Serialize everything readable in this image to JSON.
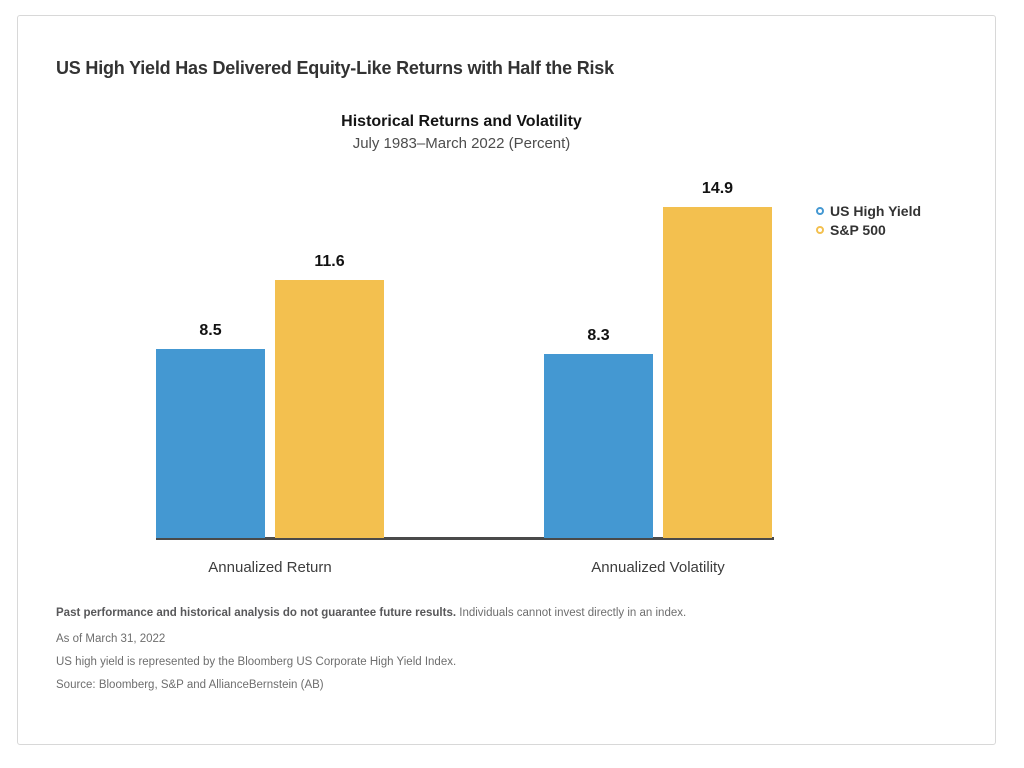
{
  "page_title": "US High Yield Has Delivered Equity-Like Returns with Half the Risk",
  "chart_data": {
    "type": "bar",
    "title": "Historical Returns and Volatility",
    "subtitle": "July 1983–March 2022 (Percent)",
    "categories": [
      "Annualized Return",
      "Annualized Volatility"
    ],
    "series": [
      {
        "name": "US High Yield",
        "color": "#4498D2",
        "values": [
          8.5,
          8.3
        ]
      },
      {
        "name": "S&P 500",
        "color": "#F3C04F",
        "values": [
          11.6,
          14.9
        ]
      }
    ],
    "ylim": [
      0,
      15.5
    ],
    "grid": false,
    "legend_position": "right",
    "data_labels": true,
    "axis_line_color": "#4a4a4a"
  },
  "footnotes": {
    "disclaimer_bold": "Past performance and historical analysis do not guarantee future results.",
    "disclaimer_rest": " Individuals cannot invest directly in an index.",
    "as_of": "As of March 31, 2022",
    "index_note": "US high yield is represented by the Bloomberg US Corporate High Yield Index.",
    "source": "Source: Bloomberg, S&P and AllianceBernstein (AB)"
  }
}
